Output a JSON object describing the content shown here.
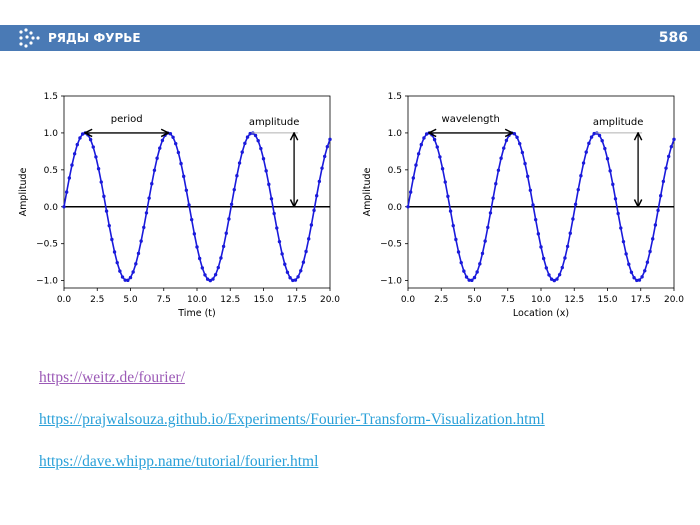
{
  "header": {
    "title": "РЯДЫ ФУРЬЕ",
    "page_number": "586"
  },
  "chart_data": [
    {
      "type": "line",
      "xlabel": "Time (t)",
      "ylabel": "Amplitude",
      "xlim": [
        0,
        20
      ],
      "ylim": [
        -1.1,
        1.5
      ],
      "xticks": [
        "0.0",
        "2.5",
        "5.0",
        "7.5",
        "10.0",
        "12.5",
        "15.0",
        "17.5",
        "20.0"
      ],
      "yticks": [
        "1.5",
        "1.0",
        "0.5",
        "0.0",
        "−0.5",
        "−1.0"
      ],
      "xtick_values": [
        0,
        2.5,
        5,
        7.5,
        10,
        12.5,
        15,
        17.5,
        20
      ],
      "ytick_values": [
        1.5,
        1.0,
        0.5,
        0.0,
        -0.5,
        -1.0
      ],
      "function": "sin",
      "period": 6.2832,
      "x_max": 20,
      "series_color": "#1a1adb",
      "annotations": {
        "span_label": "period",
        "amplitude_label": "amplitude",
        "span_from": 1.5708,
        "span_to": 7.854,
        "amplitude_x": 17.3
      }
    },
    {
      "type": "line",
      "xlabel": "Location (x)",
      "ylabel": "Amplitude",
      "xlim": [
        0,
        20
      ],
      "ylim": [
        -1.1,
        1.5
      ],
      "xticks": [
        "0.0",
        "2.5",
        "5.0",
        "7.5",
        "10.0",
        "12.5",
        "15.0",
        "17.5",
        "20.0"
      ],
      "yticks": [
        "1.5",
        "1.0",
        "0.5",
        "0.0",
        "−0.5",
        "−1.0"
      ],
      "xtick_values": [
        0,
        2.5,
        5,
        7.5,
        10,
        12.5,
        15,
        17.5,
        20
      ],
      "ytick_values": [
        1.5,
        1.0,
        0.5,
        0.0,
        -0.5,
        -1.0
      ],
      "function": "sin",
      "period": 6.2832,
      "x_max": 20,
      "series_color": "#1a1adb",
      "annotations": {
        "span_label": "wavelength",
        "amplitude_label": "amplitude",
        "span_from": 1.5708,
        "span_to": 7.854,
        "amplitude_x": 17.3
      }
    }
  ],
  "links": [
    {
      "text": "https://weitz.de/fourier/",
      "visited": true
    },
    {
      "text": "https://prajwalsouza.github.io/Experiments/Fourier-Transform-Visualization.html",
      "visited": false
    },
    {
      "text": "https://dave.whipp.name/tutorial/fourier.html",
      "visited": false
    }
  ]
}
